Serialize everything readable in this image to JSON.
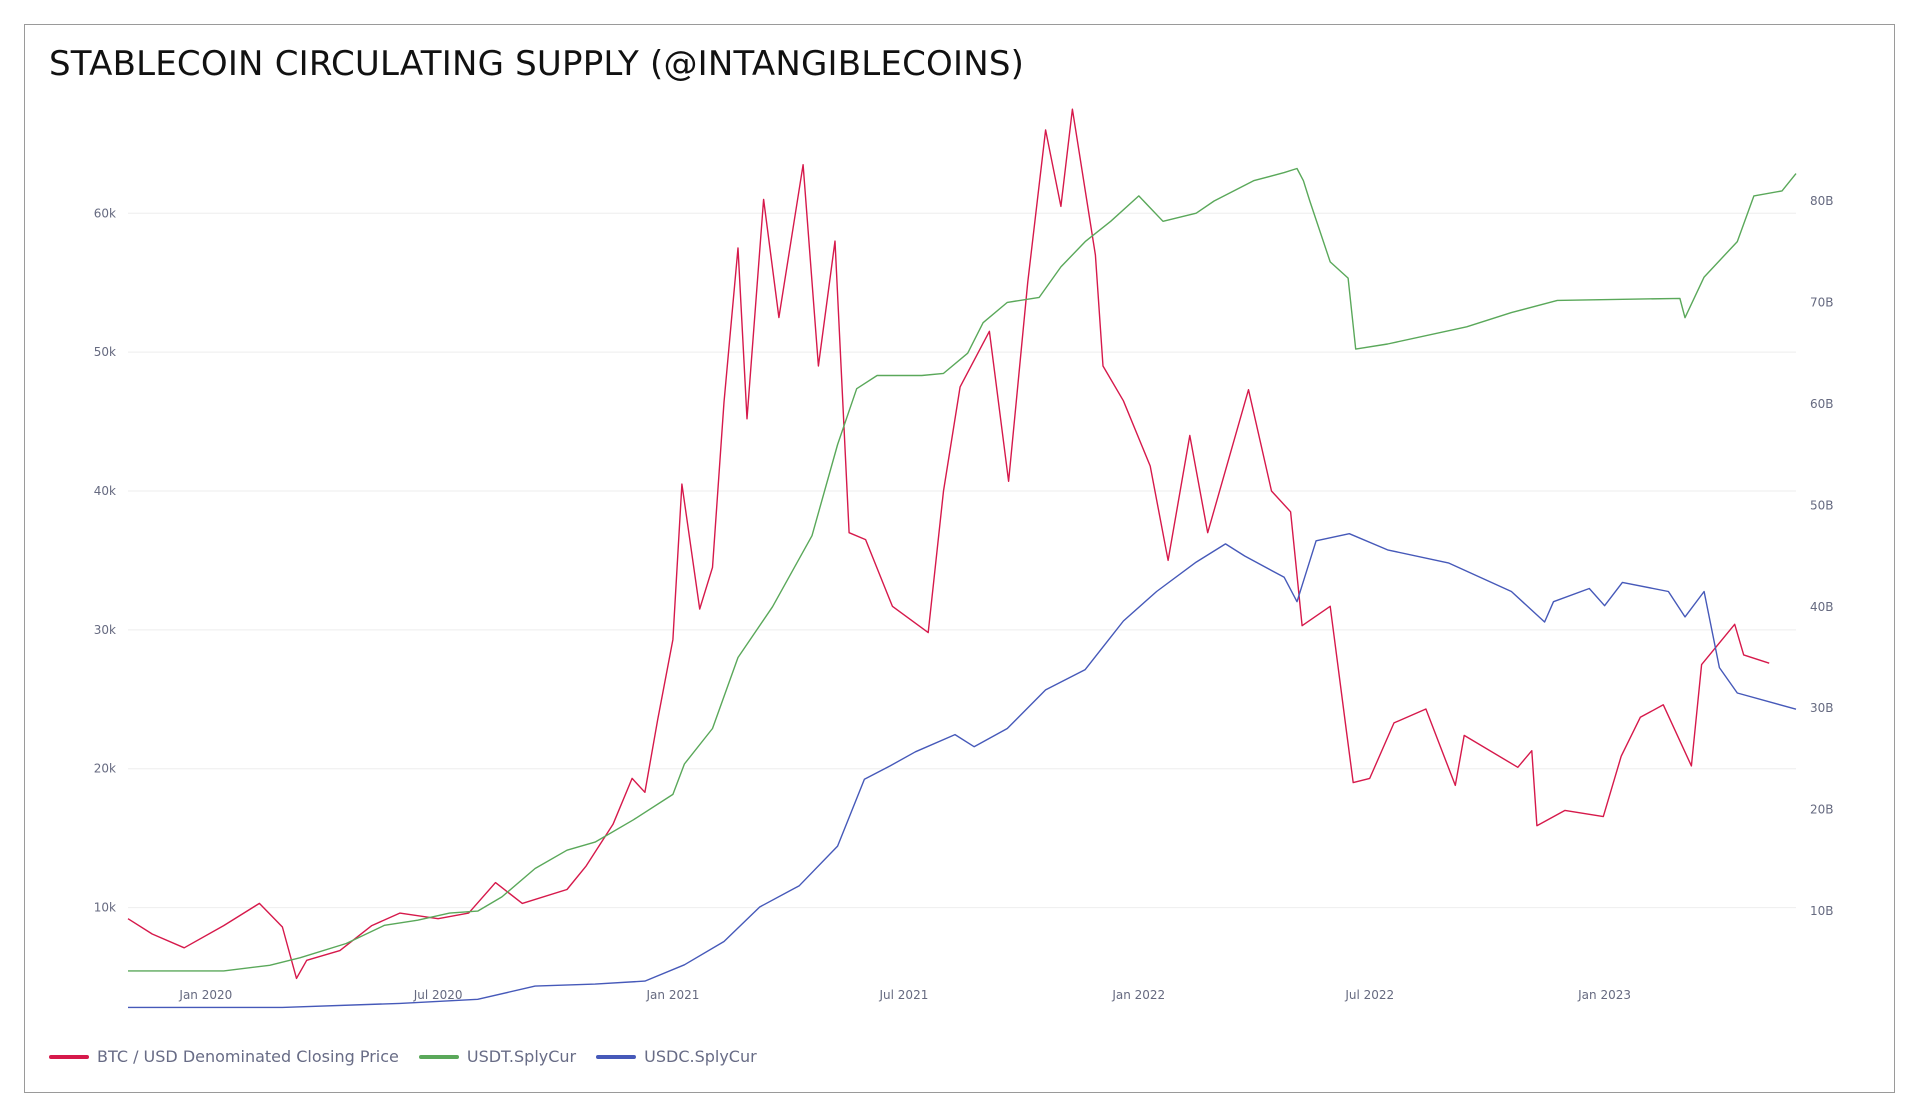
{
  "chart_data": {
    "type": "line",
    "title": "STABLECOIN CIRCULATING SUPPLY (@INTANGIBLECOINS)",
    "x_ticks": [
      "Jan 2020",
      "Jul 2020",
      "Jan 2021",
      "Jul 2021",
      "Jan 2022",
      "Jul 2022",
      "Jan 2023"
    ],
    "x_range": [
      "2019-11-01",
      "2023-05-31"
    ],
    "y_left": {
      "ticks": [
        "10k",
        "20k",
        "30k",
        "40k",
        "50k",
        "60k"
      ],
      "range": [
        5000,
        66000
      ]
    },
    "y_right": {
      "ticks": [
        "10B",
        "20B",
        "30B",
        "40B",
        "50B",
        "60B",
        "70B",
        "80B"
      ],
      "range": [
        3500,
        87000
      ]
    },
    "grid": true,
    "legend_position": "bottom-left",
    "series": [
      {
        "name": "BTC / USD Denominated Closing Price",
        "axis": "left",
        "color": "#d6194b",
        "points": [
          [
            "2019-11-01",
            9200
          ],
          [
            "2019-11-20",
            8100
          ],
          [
            "2019-12-15",
            7100
          ],
          [
            "2020-01-15",
            8700
          ],
          [
            "2020-02-12",
            10300
          ],
          [
            "2020-03-01",
            8600
          ],
          [
            "2020-03-12",
            4900
          ],
          [
            "2020-03-20",
            6200
          ],
          [
            "2020-04-15",
            6900
          ],
          [
            "2020-05-10",
            8700
          ],
          [
            "2020-06-01",
            9600
          ],
          [
            "2020-07-01",
            9200
          ],
          [
            "2020-07-25",
            9600
          ],
          [
            "2020-08-15",
            11800
          ],
          [
            "2020-09-05",
            10300
          ],
          [
            "2020-10-10",
            11300
          ],
          [
            "2020-10-25",
            13000
          ],
          [
            "2020-11-15",
            16000
          ],
          [
            "2020-11-30",
            19300
          ],
          [
            "2020-12-10",
            18300
          ],
          [
            "2020-12-20",
            23500
          ],
          [
            "2021-01-01",
            29300
          ],
          [
            "2021-01-08",
            40500
          ],
          [
            "2021-01-22",
            31500
          ],
          [
            "2021-02-01",
            34500
          ],
          [
            "2021-02-10",
            46400
          ],
          [
            "2021-02-21",
            57500
          ],
          [
            "2021-02-28",
            45200
          ],
          [
            "2021-03-13",
            61000
          ],
          [
            "2021-03-25",
            52500
          ],
          [
            "2021-04-13",
            63500
          ],
          [
            "2021-04-25",
            49000
          ],
          [
            "2021-05-08",
            58000
          ],
          [
            "2021-05-19",
            37000
          ],
          [
            "2021-06-01",
            36500
          ],
          [
            "2021-06-22",
            31700
          ],
          [
            "2021-07-20",
            29800
          ],
          [
            "2021-08-01",
            40000
          ],
          [
            "2021-08-14",
            47500
          ],
          [
            "2021-09-06",
            51500
          ],
          [
            "2021-09-21",
            40700
          ],
          [
            "2021-10-06",
            55000
          ],
          [
            "2021-10-20",
            66000
          ],
          [
            "2021-11-01",
            60500
          ],
          [
            "2021-11-10",
            67500
          ],
          [
            "2021-11-28",
            57000
          ],
          [
            "2021-12-04",
            49000
          ],
          [
            "2021-12-20",
            46500
          ],
          [
            "2022-01-10",
            41800
          ],
          [
            "2022-01-24",
            35000
          ],
          [
            "2022-02-10",
            44000
          ],
          [
            "2022-02-24",
            37000
          ],
          [
            "2022-03-28",
            47300
          ],
          [
            "2022-04-15",
            40000
          ],
          [
            "2022-04-30",
            38500
          ],
          [
            "2022-05-09",
            30300
          ],
          [
            "2022-05-31",
            31700
          ],
          [
            "2022-06-13",
            22500
          ],
          [
            "2022-06-18",
            19000
          ],
          [
            "2022-07-01",
            19300
          ],
          [
            "2022-07-20",
            23300
          ],
          [
            "2022-08-14",
            24300
          ],
          [
            "2022-09-06",
            18800
          ],
          [
            "2022-09-13",
            22400
          ],
          [
            "2022-10-25",
            20100
          ],
          [
            "2022-11-05",
            21300
          ],
          [
            "2022-11-09",
            15900
          ],
          [
            "2022-12-01",
            17000
          ],
          [
            "2022-12-31",
            16550
          ],
          [
            "2023-01-14",
            20900
          ],
          [
            "2023-01-29",
            23700
          ],
          [
            "2023-02-16",
            24600
          ],
          [
            "2023-03-10",
            20200
          ],
          [
            "2023-03-18",
            27500
          ],
          [
            "2023-04-13",
            30400
          ],
          [
            "2023-04-20",
            28200
          ],
          [
            "2023-05-10",
            27600
          ]
        ]
      },
      {
        "name": "USDT.SplyCur",
        "axis": "right",
        "color": "#5aa85a",
        "points": [
          [
            "2019-11-01",
            4100
          ],
          [
            "2020-01-15",
            4100
          ],
          [
            "2020-02-20",
            4650
          ],
          [
            "2020-03-15",
            5400
          ],
          [
            "2020-04-20",
            6800
          ],
          [
            "2020-05-20",
            8600
          ],
          [
            "2020-06-15",
            9100
          ],
          [
            "2020-07-10",
            9800
          ],
          [
            "2020-08-01",
            10000
          ],
          [
            "2020-08-20",
            11400
          ],
          [
            "2020-09-15",
            14200
          ],
          [
            "2020-10-10",
            16000
          ],
          [
            "2020-11-01",
            16800
          ],
          [
            "2020-12-01",
            19000
          ],
          [
            "2021-01-01",
            21500
          ],
          [
            "2021-01-10",
            24500
          ],
          [
            "2021-02-01",
            28000
          ],
          [
            "2021-02-21",
            35000
          ],
          [
            "2021-03-20",
            40000
          ],
          [
            "2021-04-20",
            47000
          ],
          [
            "2021-05-10",
            56000
          ],
          [
            "2021-05-25",
            61500
          ],
          [
            "2021-06-10",
            62800
          ],
          [
            "2021-07-15",
            62800
          ],
          [
            "2021-08-01",
            63000
          ],
          [
            "2021-08-20",
            65000
          ],
          [
            "2021-09-01",
            68000
          ],
          [
            "2021-09-20",
            70000
          ],
          [
            "2021-10-15",
            70500
          ],
          [
            "2021-11-01",
            73500
          ],
          [
            "2021-11-20",
            76000
          ],
          [
            "2021-12-10",
            78000
          ],
          [
            "2022-01-01",
            80500
          ],
          [
            "2022-01-20",
            78000
          ],
          [
            "2022-02-15",
            78800
          ],
          [
            "2022-03-01",
            80000
          ],
          [
            "2022-04-01",
            82000
          ],
          [
            "2022-04-25",
            82800
          ],
          [
            "2022-05-05",
            83200
          ],
          [
            "2022-05-10",
            82000
          ],
          [
            "2022-05-15",
            80000
          ],
          [
            "2022-05-31",
            74000
          ],
          [
            "2022-06-14",
            72400
          ],
          [
            "2022-06-20",
            65400
          ],
          [
            "2022-07-15",
            65900
          ],
          [
            "2022-09-15",
            67600
          ],
          [
            "2022-10-20",
            69000
          ],
          [
            "2022-11-25",
            70200
          ],
          [
            "2023-03-01",
            70400
          ],
          [
            "2023-03-05",
            68500
          ],
          [
            "2023-03-20",
            72500
          ],
          [
            "2023-04-15",
            76000
          ],
          [
            "2023-04-28",
            80500
          ],
          [
            "2023-05-20",
            81000
          ],
          [
            "2023-05-31",
            82700
          ]
        ]
      },
      {
        "name": "USDC.SplyCur",
        "axis": "right",
        "color": "#4659b9",
        "points": [
          [
            "2019-11-01",
            500
          ],
          [
            "2020-03-01",
            500
          ],
          [
            "2020-06-01",
            900
          ],
          [
            "2020-08-01",
            1300
          ],
          [
            "2020-09-15",
            2600
          ],
          [
            "2020-11-01",
            2800
          ],
          [
            "2020-12-10",
            3100
          ],
          [
            "2021-01-10",
            4700
          ],
          [
            "2021-02-10",
            7000
          ],
          [
            "2021-03-10",
            10400
          ],
          [
            "2021-04-10",
            12500
          ],
          [
            "2021-05-10",
            16400
          ],
          [
            "2021-05-31",
            23000
          ],
          [
            "2021-06-20",
            24300
          ],
          [
            "2021-07-10",
            25700
          ],
          [
            "2021-08-10",
            27400
          ],
          [
            "2021-08-25",
            26200
          ],
          [
            "2021-09-20",
            28000
          ],
          [
            "2021-10-20",
            31800
          ],
          [
            "2021-11-20",
            33800
          ],
          [
            "2021-12-20",
            38600
          ],
          [
            "2022-01-15",
            41500
          ],
          [
            "2022-02-15",
            44400
          ],
          [
            "2022-03-10",
            46200
          ],
          [
            "2022-03-25",
            45000
          ],
          [
            "2022-04-25",
            42900
          ],
          [
            "2022-05-05",
            40500
          ],
          [
            "2022-05-20",
            46500
          ],
          [
            "2022-06-15",
            47200
          ],
          [
            "2022-07-15",
            45600
          ],
          [
            "2022-09-01",
            44300
          ],
          [
            "2022-10-20",
            41500
          ],
          [
            "2022-11-15",
            38500
          ],
          [
            "2022-11-22",
            40500
          ],
          [
            "2022-12-20",
            41800
          ],
          [
            "2023-01-01",
            40100
          ],
          [
            "2023-01-15",
            42400
          ],
          [
            "2023-02-20",
            41500
          ],
          [
            "2023-03-05",
            39000
          ],
          [
            "2023-03-20",
            41500
          ],
          [
            "2023-04-01",
            34000
          ],
          [
            "2023-04-15",
            31500
          ],
          [
            "2023-05-31",
            29900
          ]
        ]
      }
    ]
  }
}
